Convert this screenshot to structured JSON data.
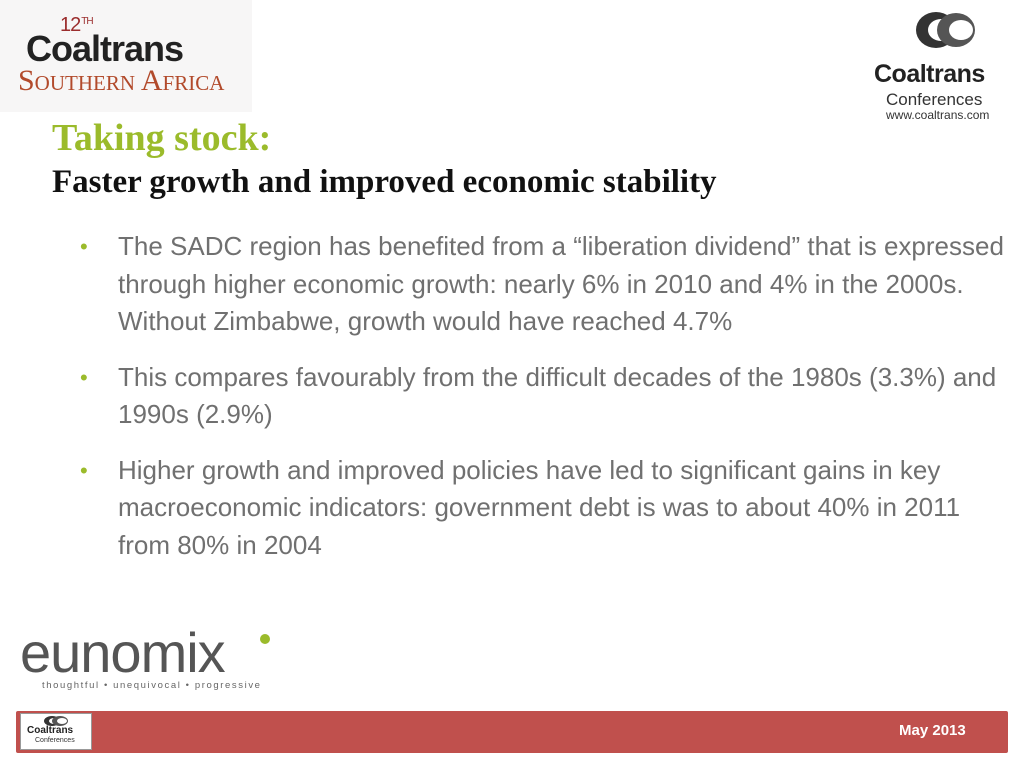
{
  "event_logo": {
    "edition": "12",
    "edition_suffix": "TH",
    "brand": "Coaltrans",
    "region": "Southern Africa"
  },
  "conf_logo": {
    "brand": "Coaltrans",
    "sub": "Conferences",
    "url": "www.coaltrans.com"
  },
  "title": "Taking stock:",
  "subtitle": "Faster growth and improved economic stability",
  "bullets": [
    "The SADC region has benefited from a “liberation dividend” that is expressed through higher economic growth: nearly 6% in 2010 and 4% in the 2000s. Without Zimbabwe, growth would have reached 4.7%",
    "This compares favourably from the difficult decades of the 1980s (3.3%) and 1990s (2.9%)",
    "Higher growth and improved policies have led to significant gains in key macroeconomic indicators: government debt is was to about 40% in 2011 from 80% in 2004"
  ],
  "eunomix": {
    "word": "eunomix",
    "tagline": "thoughtful • unequivocal • progressive"
  },
  "footer": {
    "logo_brand": "Coaltrans",
    "logo_sub": "Conferences",
    "date": "May 2013"
  },
  "colors": {
    "title_green": "#9bbb2b",
    "footer_red": "#c0504d",
    "body_gray": "#707070"
  }
}
